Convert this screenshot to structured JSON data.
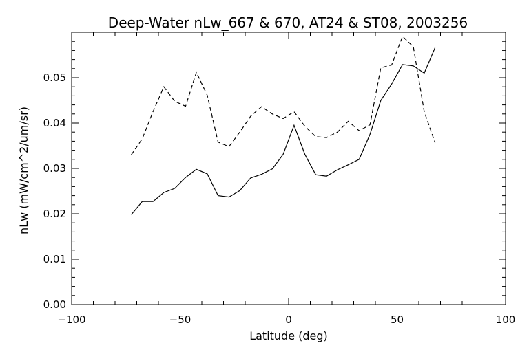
{
  "chart_data": {
    "type": "line",
    "title": "Deep-Water nLw_667 & 670, AT24 & ST08, 2003256",
    "xlabel": "Latitude (deg)",
    "ylabel": "nLw (mW/cm^2/um/sr)",
    "xlim": [
      -100,
      100
    ],
    "ylim": [
      0.0,
      0.06
    ],
    "xticks": [
      -100,
      -50,
      0,
      50,
      100
    ],
    "xtick_labels": [
      "−100",
      "−50",
      "0",
      "50",
      "100"
    ],
    "yticks": [
      0.0,
      0.01,
      0.02,
      0.03,
      0.04,
      0.05
    ],
    "ytick_labels": [
      "0.00",
      "0.01",
      "0.02",
      "0.03",
      "0.04",
      "0.05"
    ],
    "grid": false,
    "legend": "none",
    "series": [
      {
        "style": "solid",
        "x": [
          -72.5,
          -67.5,
          -62.5,
          -57.5,
          -52.5,
          -47.5,
          -42.5,
          -37.5,
          -32.5,
          -27.5,
          -22.5,
          -17.5,
          -12.5,
          -7.5,
          -2.5,
          2.5,
          7.5,
          12.5,
          17.5,
          22.5,
          27.5,
          32.5,
          37.5,
          42.5,
          47.5,
          52.5,
          57.5,
          62.5,
          67.5
        ],
        "values": [
          0.0198,
          0.0227,
          0.0227,
          0.0247,
          0.0256,
          0.028,
          0.0298,
          0.0288,
          0.024,
          0.0237,
          0.0251,
          0.0279,
          0.0287,
          0.0299,
          0.0331,
          0.0395,
          0.0331,
          0.0286,
          0.0283,
          0.0297,
          0.0308,
          0.032,
          0.0375,
          0.045,
          0.0486,
          0.0529,
          0.0526,
          0.051,
          0.0566
        ]
      },
      {
        "style": "dashed",
        "x": [
          -72.5,
          -67.5,
          -62.5,
          -57.5,
          -52.5,
          -47.5,
          -42.5,
          -37.5,
          -32.5,
          -27.5,
          -22.5,
          -17.5,
          -12.5,
          -7.5,
          -2.5,
          2.5,
          7.5,
          12.5,
          17.5,
          22.5,
          27.5,
          32.5,
          37.5,
          42.5,
          47.5,
          52.5,
          57.5,
          62.5,
          67.5
        ],
        "values": [
          0.033,
          0.0365,
          0.0425,
          0.048,
          0.0448,
          0.0437,
          0.0512,
          0.0461,
          0.0358,
          0.0348,
          0.038,
          0.0415,
          0.0436,
          0.042,
          0.041,
          0.0425,
          0.0393,
          0.037,
          0.0368,
          0.038,
          0.0404,
          0.0383,
          0.0396,
          0.0522,
          0.0528,
          0.0591,
          0.0568,
          0.0425,
          0.0357
        ]
      }
    ]
  }
}
